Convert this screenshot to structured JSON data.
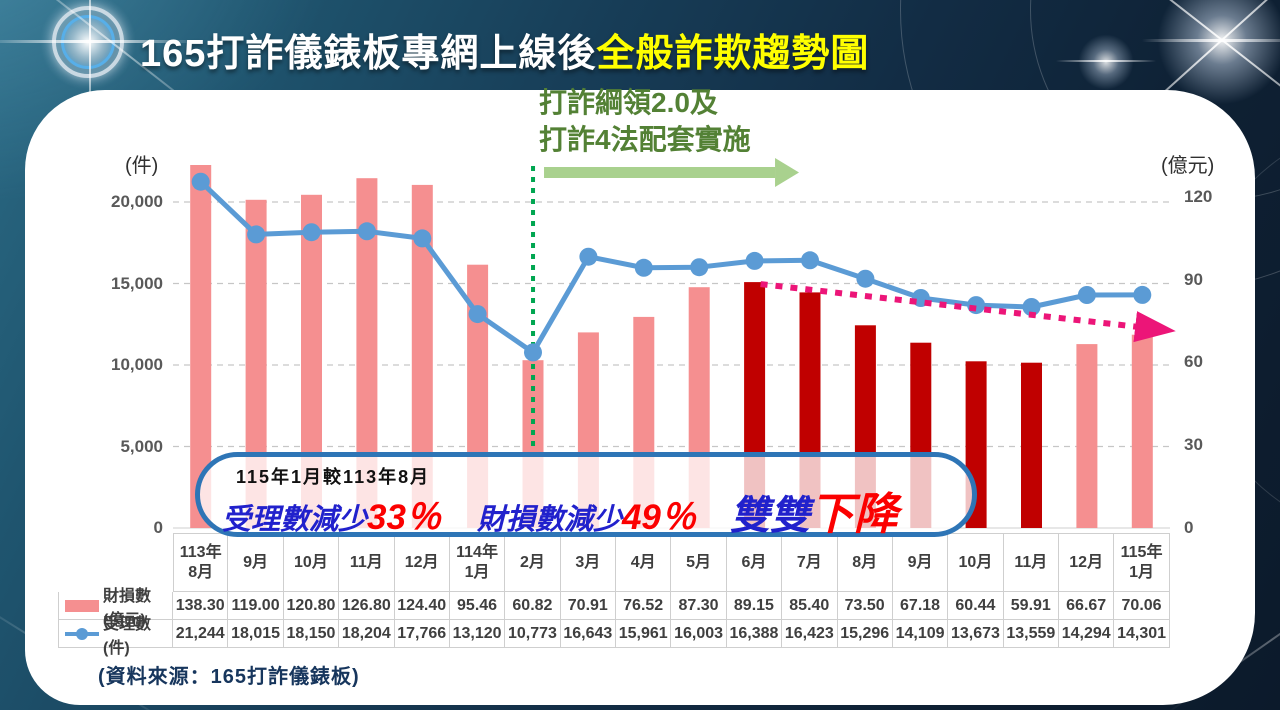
{
  "title": {
    "prefix": "165打詐儀錶板專網上線後",
    "highlight": "全般詐欺趨勢圖"
  },
  "policy_note": {
    "line1": "打詐綱領2.0及",
    "line2": "打詐4法配套實施"
  },
  "callout": {
    "heading": "115年1月較113年8月",
    "part1_label": "受理數減少",
    "part1_value": "33％",
    "part2_label": "財損數減少",
    "part2_value": "49％",
    "part3_blue": "雙雙",
    "part3_red": "下降"
  },
  "source_note": "(資料來源：165打詐儀錶板)",
  "colors": {
    "bar": "#f58f90",
    "bar_emphasis": "#c00000",
    "line": "#5b9bd5",
    "trend_arrow": "#ec1578",
    "policy_text_green": "#538135",
    "policy_arrow_green": "#a9d18e",
    "event_line_green": "#00a651",
    "callout_border_blue": "#2e75b6",
    "title_highlight": "#ffff00"
  },
  "chart_data": {
    "type": "bar+line combo",
    "title": "165打詐儀錶板專網上線後全般詐欺趨勢圖",
    "categories": [
      "113年|8月",
      "9月",
      "10月",
      "11月",
      "12月",
      "114年|1月",
      "2月",
      "3月",
      "4月",
      "5月",
      "6月",
      "7月",
      "8月",
      "9月",
      "10月",
      "11月",
      "12月",
      "115年|1月"
    ],
    "series": [
      {
        "name": "財損數(億元)",
        "type": "bar",
        "axis": "right",
        "values": [
          138.3,
          119.0,
          120.8,
          126.8,
          124.4,
          95.46,
          60.82,
          70.91,
          76.52,
          87.3,
          89.15,
          85.4,
          73.5,
          67.18,
          60.44,
          59.91,
          66.67,
          70.06
        ],
        "emphasized_indices": [
          10,
          11,
          12,
          13,
          14,
          15
        ]
      },
      {
        "name": "受理數(件)",
        "type": "line",
        "axis": "left",
        "values": [
          21244,
          18015,
          18150,
          18204,
          17766,
          13120,
          10773,
          16643,
          15961,
          16003,
          16388,
          16423,
          15296,
          14109,
          13673,
          13559,
          14294,
          14301
        ]
      }
    ],
    "left_axis": {
      "unit": "(件)",
      "ticks": [
        0,
        5000,
        10000,
        15000,
        20000
      ],
      "max": 22270
    },
    "right_axis": {
      "unit": "(億元)",
      "ticks": [
        0,
        30,
        60,
        90,
        120
      ],
      "max": 131.6
    },
    "grid": "dashed horizontal gridlines",
    "legend_position": "table rows at bottom-left",
    "event_marker_index": 6,
    "trend_arrow": {
      "from_index": 10,
      "to_index": 17
    }
  }
}
